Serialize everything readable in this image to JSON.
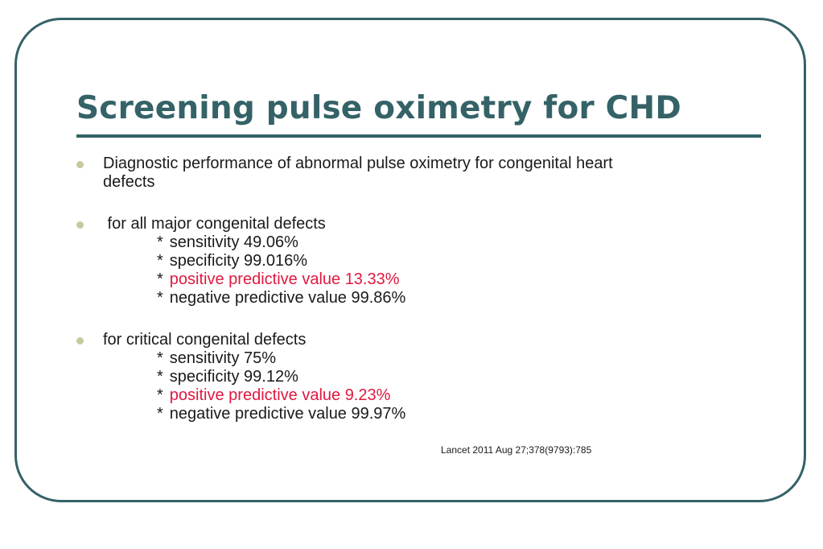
{
  "slide": {
    "title": "Screening pulse oximetry for CHD",
    "bullets": [
      {
        "lines": [
          "Diagnostic performance of abnormal pulse oximetry for congenital heart",
          "defects"
        ]
      },
      {
        "heading": " for all major congenital defects",
        "items": [
          {
            "marker": "*",
            "text": "sensitivity 49.06%",
            "highlight": false
          },
          {
            "marker": "*",
            "text": "specificity 99.016%",
            "highlight": false
          },
          {
            "marker": "*",
            "text": "positive predictive value 13.33%",
            "highlight": true
          },
          {
            "marker": "*",
            "text": "negative predictive value 99.86%",
            "highlight": false
          }
        ]
      },
      {
        "heading": "for critical congenital defects",
        "items": [
          {
            "marker": "*",
            "text": "sensitivity 75%",
            "highlight": false
          },
          {
            "marker": "*",
            "text": "specificity 99.12%",
            "highlight": false
          },
          {
            "marker": "*",
            "text": "positive predictive value 9.23%",
            "highlight": true
          },
          {
            "marker": "*",
            "text": "negative predictive value 99.97%",
            "highlight": false
          }
        ]
      }
    ],
    "citation": "Lancet 2011 Aug 27;378(9793):785"
  },
  "colors": {
    "title": "#346267",
    "frame": "#346267",
    "body_text": "#1a1a1a",
    "highlight": "#e0183f",
    "bullet": "#c8c8a0"
  }
}
